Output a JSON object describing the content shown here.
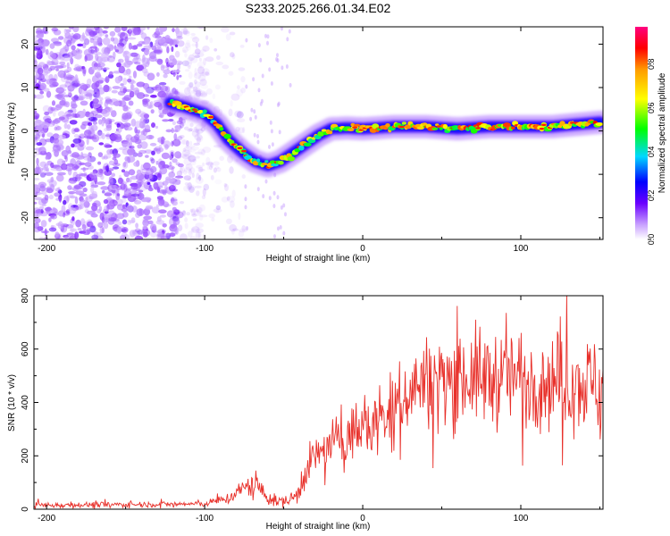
{
  "title": "S233.2025.266.01.34.E02",
  "chart_data": [
    {
      "type": "heatmap",
      "title": "S233.2025.266.01.34.E02",
      "xlabel": "Height of straight line (km)",
      "ylabel": "Frequency (Hz)",
      "xlim": [
        -208,
        152
      ],
      "ylim": [
        -25,
        24
      ],
      "xticks": [
        -200,
        -100,
        0,
        100
      ],
      "yticks": [
        -20,
        -10,
        0,
        10,
        20
      ],
      "colorbar": {
        "label": "Normalized spectral amplitude",
        "ticks": [
          "0.0",
          "0.2",
          "0.4",
          "0.6",
          "0.8"
        ],
        "tick_values": [
          0.0,
          0.2,
          0.4,
          0.6,
          0.8
        ],
        "range": [
          0,
          0.97
        ]
      },
      "ridge": {
        "description": "Dominant frequency trace",
        "x": [
          -122,
          -112,
          -100,
          -92,
          -85,
          -76,
          -68,
          -60,
          -52,
          -44,
          -36,
          -28,
          -20,
          -10,
          0,
          20,
          40,
          60,
          80,
          100,
          120,
          135,
          150
        ],
        "y": [
          6.5,
          5.5,
          4,
          1.5,
          -2,
          -5,
          -7,
          -8,
          -7,
          -5,
          -3,
          -1,
          0.5,
          0.7,
          0.5,
          1,
          1,
          0.5,
          1,
          1,
          1,
          1.5,
          2
        ]
      },
      "noise_region_x": [
        -208,
        -100
      ]
    },
    {
      "type": "line",
      "xlabel": "Height of straight line (km)",
      "ylabel": "SNR (10 * v/v)",
      "xlim": [
        -208,
        152
      ],
      "ylim": [
        0,
        800
      ],
      "xticks": [
        -200,
        -100,
        0,
        100
      ],
      "yticks": [
        0,
        200,
        400,
        600,
        800
      ],
      "series": [
        {
          "name": "SNR",
          "color": "#e8302a",
          "envelope_x": [
            -208,
            -140,
            -100,
            -85,
            -80,
            -72,
            -65,
            -60,
            -55,
            -48,
            -42,
            -38,
            -30,
            -20,
            -10,
            0,
            10,
            20,
            30,
            40,
            60,
            80,
            100,
            120,
            150
          ],
          "envelope_mean": [
            15,
            18,
            20,
            40,
            60,
            90,
            80,
            40,
            30,
            30,
            50,
            120,
            200,
            240,
            280,
            300,
            330,
            380,
            450,
            480,
            500,
            490,
            500,
            480,
            470
          ],
          "envelope_spread": [
            10,
            10,
            10,
            20,
            30,
            40,
            35,
            25,
            20,
            20,
            40,
            60,
            70,
            80,
            90,
            110,
            120,
            130,
            140,
            150,
            170,
            170,
            160,
            160,
            170
          ]
        }
      ]
    }
  ]
}
